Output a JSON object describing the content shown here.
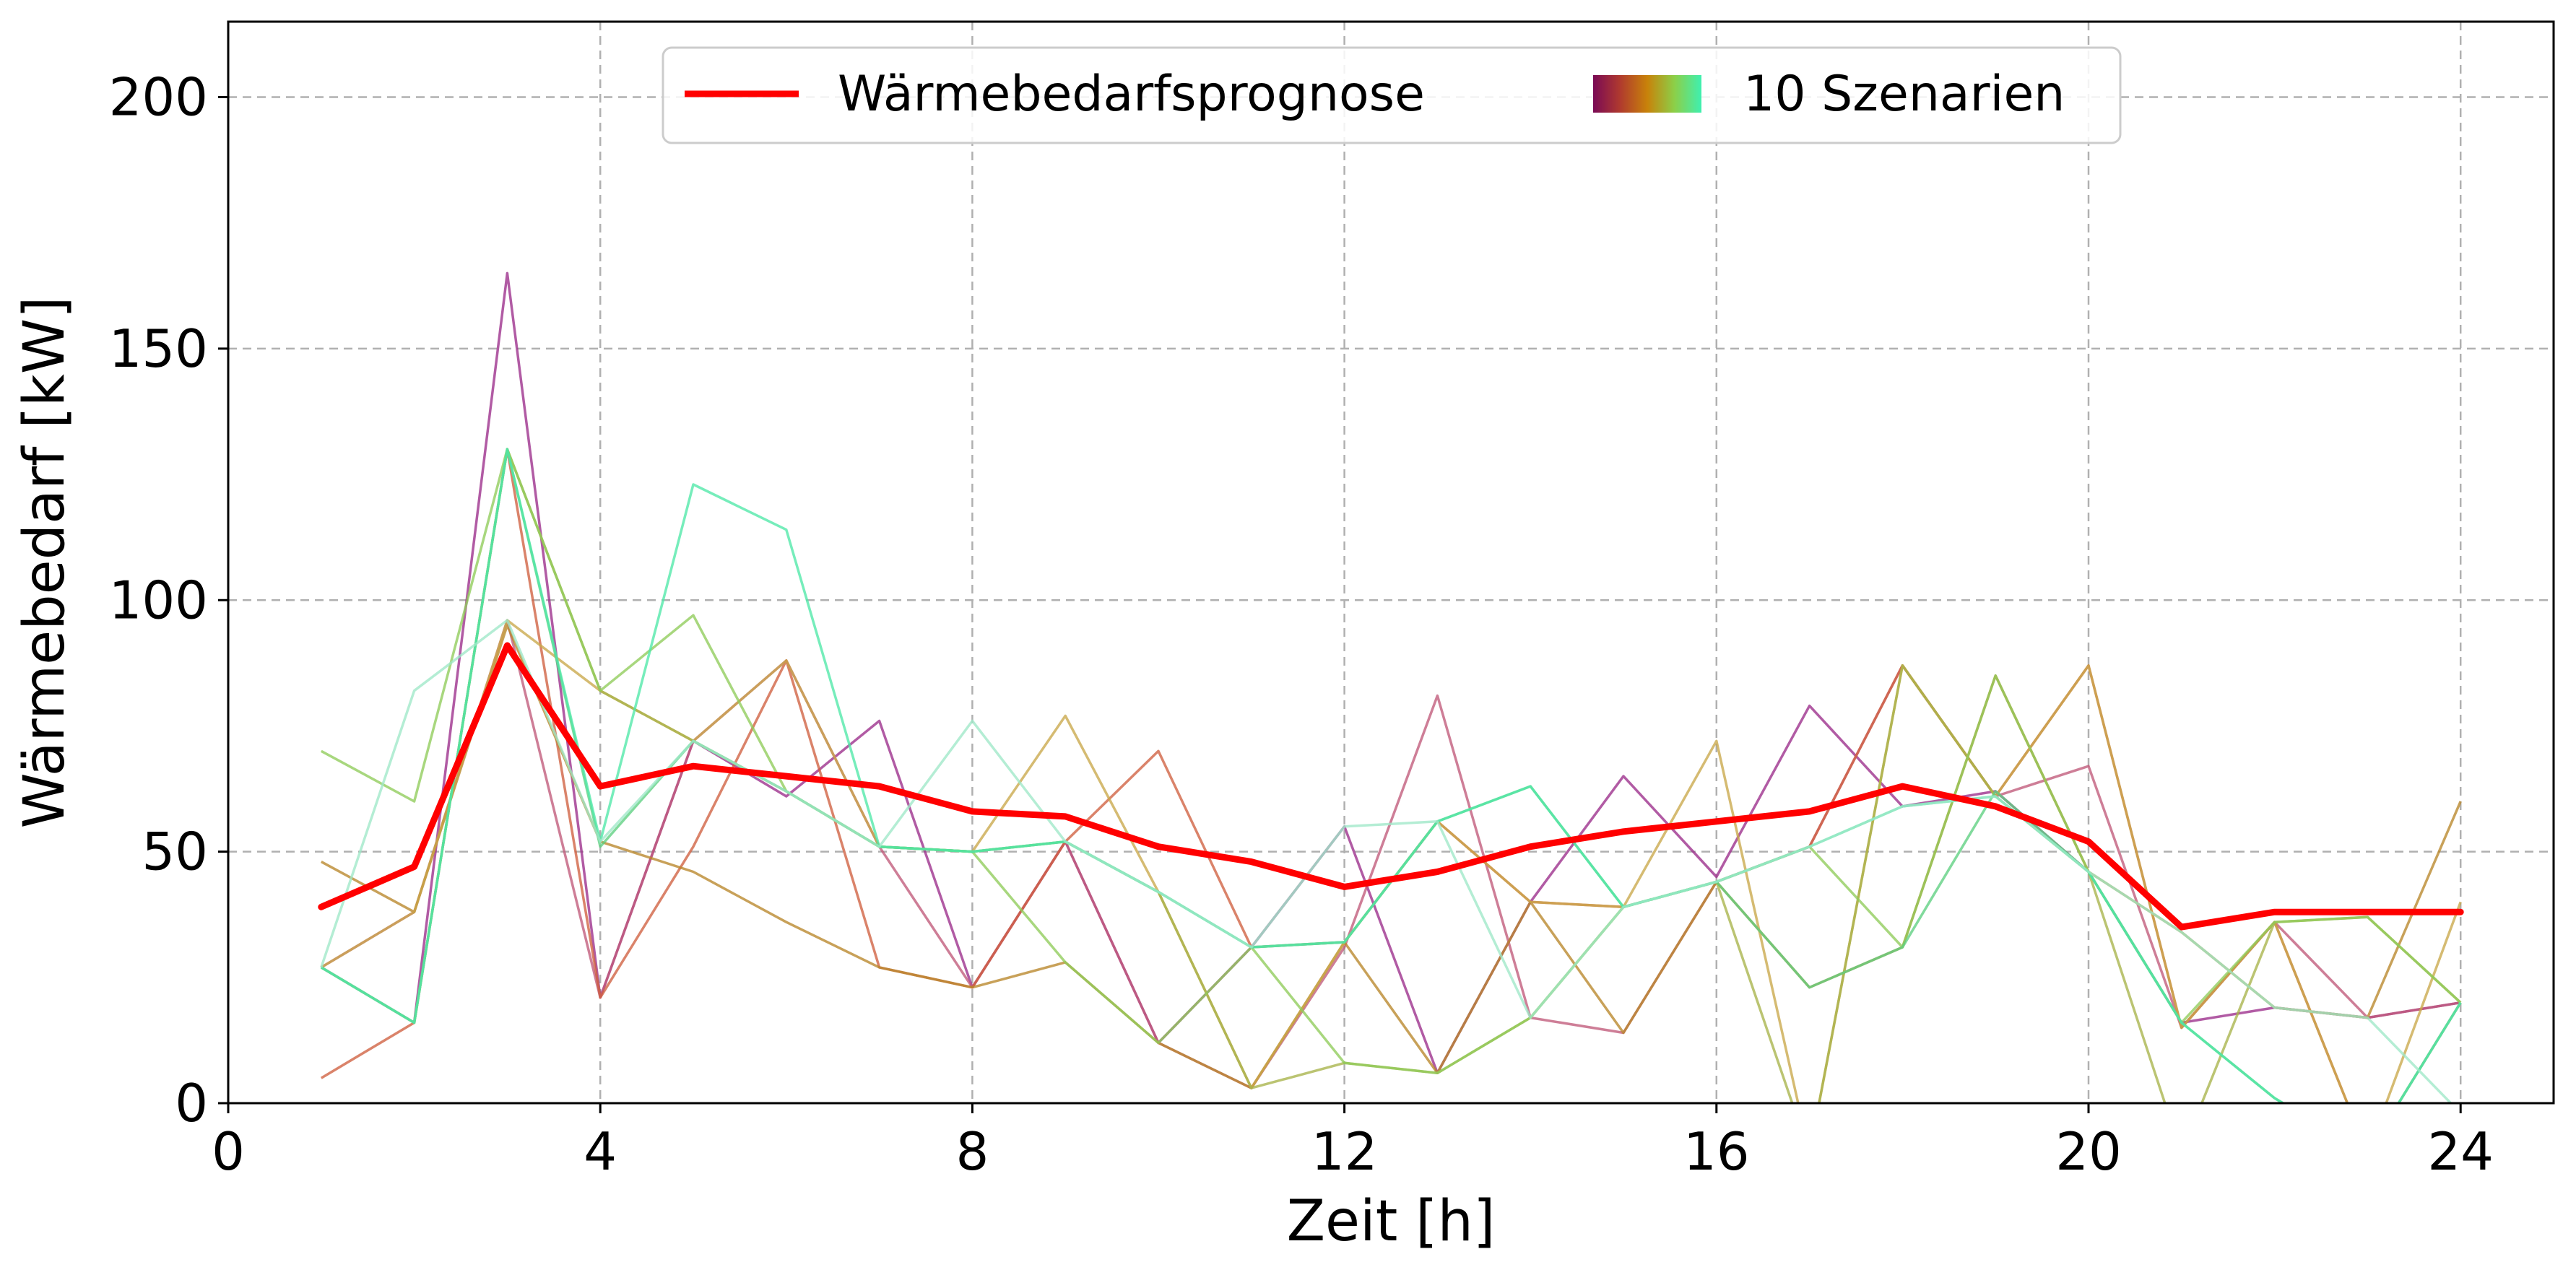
{
  "chart_data": {
    "type": "line",
    "xlabel": "Zeit [h]",
    "ylabel": "Wärmebedarf [kW]",
    "xlim": [
      0,
      25
    ],
    "ylim": [
      0,
      215
    ],
    "xticks": [
      0,
      4,
      8,
      12,
      16,
      20,
      24
    ],
    "yticks": [
      0,
      50,
      100,
      150,
      200
    ],
    "grid": true,
    "legend_position": "top-center",
    "legend": {
      "forecast_label": "Wärmebedarfsprognose",
      "scenarios_label": "10 Szenarien",
      "scenario_gradient": [
        "#7a0a55",
        "#b03a2e",
        "#c8820a",
        "#8ccf48",
        "#3ff0b0"
      ]
    },
    "x": [
      1,
      2,
      3,
      4,
      5,
      6,
      7,
      8,
      9,
      10,
      11,
      12,
      13,
      14,
      15,
      16,
      17,
      18,
      19,
      20,
      21,
      22,
      23,
      24
    ],
    "forecast": {
      "name": "Wärmebedarfsprognose",
      "color": "#ff0000",
      "values": [
        39,
        47,
        91,
        63,
        67,
        65,
        63,
        58,
        57,
        51,
        48,
        43,
        46,
        51,
        54,
        56,
        58,
        63,
        59,
        52,
        35,
        38,
        38,
        38
      ]
    },
    "scenarios": [
      {
        "color": "#9b2d8a",
        "values": [
          27,
          16,
          165,
          21,
          72,
          61,
          76,
          23,
          52,
          12,
          31,
          55,
          6,
          40,
          65,
          45,
          79,
          59,
          62,
          46,
          16,
          19,
          17,
          20
        ]
      },
      {
        "color": "#c05a7a",
        "values": [
          27,
          38,
          96,
          21,
          72,
          88,
          51,
          23,
          52,
          12,
          3,
          31,
          81,
          17,
          14,
          44,
          51,
          87,
          61,
          67,
          15,
          36,
          17,
          20
        ]
      },
      {
        "color": "#d06040",
        "values": [
          5,
          16,
          130,
          21,
          51,
          88,
          27,
          23,
          52,
          70,
          31,
          32,
          56,
          40,
          39,
          44,
          51,
          87,
          61,
          87,
          15,
          36,
          -10,
          20
        ]
      },
      {
        "color": "#b8862a",
        "values": [
          48,
          38,
          95,
          52,
          46,
          36,
          27,
          23,
          28,
          12,
          3,
          32,
          6,
          40,
          14,
          44,
          23,
          31,
          85,
          46,
          34,
          19,
          17,
          60
        ]
      },
      {
        "color": "#c9a84a",
        "values": [
          27,
          38,
          96,
          82,
          72,
          88,
          51,
          50,
          77,
          42,
          3,
          32,
          56,
          40,
          39,
          72,
          -10,
          87,
          61,
          87,
          15,
          36,
          -10,
          40
        ]
      },
      {
        "color": "#a8b34a",
        "values": [
          27,
          16,
          130,
          82,
          72,
          62,
          51,
          50,
          52,
          42,
          3,
          8,
          6,
          17,
          39,
          44,
          -10,
          87,
          61,
          46,
          -10,
          36,
          37,
          20
        ]
      },
      {
        "color": "#8fcc5a",
        "values": [
          70,
          60,
          130,
          82,
          97,
          62,
          51,
          50,
          28,
          12,
          31,
          8,
          6,
          17,
          39,
          44,
          51,
          31,
          85,
          46,
          16,
          36,
          37,
          20
        ]
      },
      {
        "color": "#5ecf80",
        "values": [
          27,
          16,
          130,
          51,
          72,
          62,
          51,
          50,
          52,
          42,
          31,
          32,
          56,
          63,
          39,
          44,
          23,
          31,
          62,
          46,
          16,
          1,
          -10,
          20
        ]
      },
      {
        "color": "#4fe8a8",
        "values": [
          27,
          16,
          130,
          52,
          123,
          114,
          51,
          50,
          52,
          42,
          31,
          32,
          56,
          63,
          39,
          44,
          51,
          59,
          61,
          46,
          16,
          1,
          -10,
          20
        ]
      },
      {
        "color": "#9fe8c8",
        "values": [
          27,
          82,
          96,
          52,
          72,
          62,
          51,
          76,
          52,
          42,
          31,
          55,
          56,
          17,
          39,
          44,
          51,
          59,
          61,
          46,
          34,
          19,
          17,
          -2
        ]
      }
    ]
  }
}
